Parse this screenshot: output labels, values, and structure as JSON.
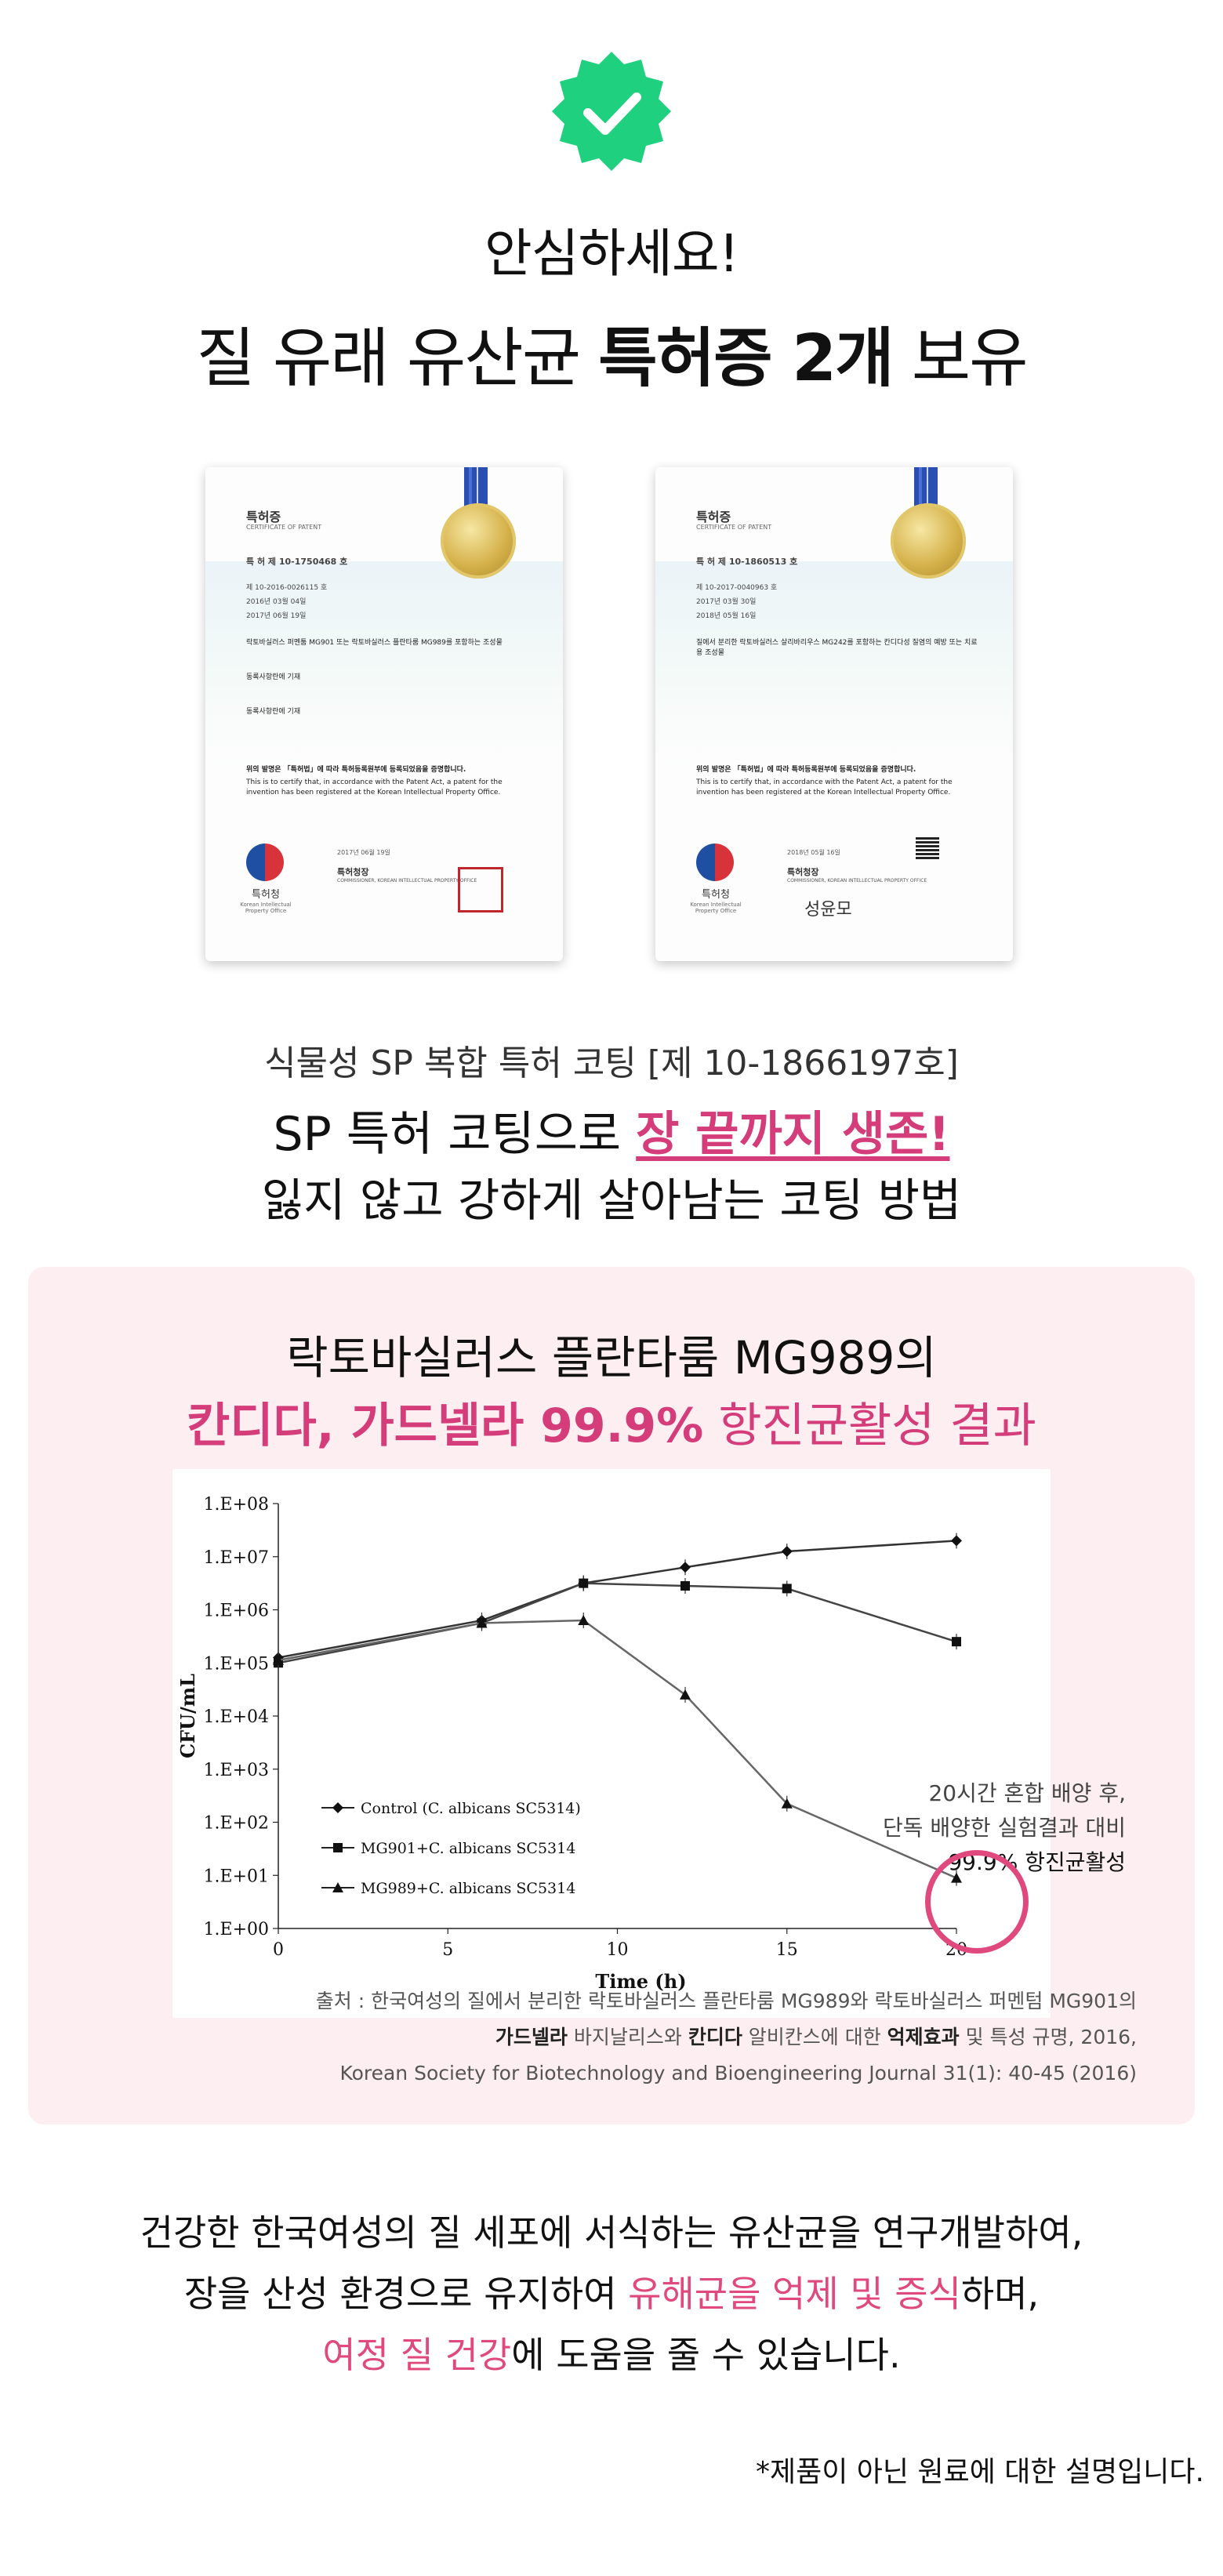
{
  "headline": {
    "line1": "안심하세요!",
    "line2_a": "질 유래 유산균 ",
    "line2_b": "특허증 2개",
    "line2_c": " 보유"
  },
  "icons": {
    "badge": "check-badge-icon",
    "color": "#1fd17f"
  },
  "certificates": [
    {
      "title": "특허증",
      "subtitle": "CERTIFICATE OF PATENT",
      "number": "제 10-1750468 호",
      "rows": [
        "제 10-2016-0026115 호",
        "2016년 03월 04일",
        "2017년 06월 19일"
      ],
      "invention": "락토바실러스 퍼멘툼 MG901 또는 락토바실러스 플란타룸 MG989를 포함하는 조성물",
      "owner": "동록사항란에 기재",
      "inventor": "동록사항란에 기재",
      "cert_kr": "위의 발명은 「특허법」에 따라 특허등록원부에 등록되었음을 증명합니다.",
      "cert_en": "This is to certify that, in accordance with the Patent Act, a patent for the invention has been registered at the Korean Intellectual Property Office.",
      "date": "2017년 06월 19일",
      "commissioner": "특허청장",
      "commissioner_en": "COMMISSIONER, KOREAN INTELLECTUAL PROPERTY OFFICE",
      "office": "특허청",
      "office_en": "Korean Intellectual Property Office"
    },
    {
      "title": "특허증",
      "subtitle": "CERTIFICATE OF PATENT",
      "number": "제 10-1860513 호",
      "rows": [
        "제 10-2017-0040963 호",
        "2017년 03월 30일",
        "2018년 05월 16일"
      ],
      "invention": "질에서 분리한 락토바실러스 살리바리우스 MG242를 포함하는 칸디다성 질염의 예방 또는 치료용 조성물",
      "cert_kr": "위의 발명은 「특허법」에 따라 특허등록원부에 등록되었음을 증명합니다.",
      "cert_en": "This is to certify that, in accordance with the Patent Act, a patent for the invention has been registered at the Korean Intellectual Property Office.",
      "date": "2018년 05월 16일",
      "commissioner": "특허청장",
      "commissioner_en": "COMMISSIONER, KOREAN INTELLECTUAL PROPERTY OFFICE",
      "office": "특허청",
      "office_en": "Korean Intellectual Property Office",
      "signature": "성윤모"
    }
  ],
  "coating": {
    "line1": "식물성 SP 복합 특허 코팅 [제 10-1866197호]",
    "line2_a": "SP 특허 코팅으로 ",
    "line2_b": "장 끝까지 생존!",
    "line3": "잃지 않고 강하게 살아남는 코팅 방법"
  },
  "panel": {
    "title1": "락토바실러스 플란타룸 MG989의",
    "title2_a": "칸디다, 가드넬라 99.9%",
    "title2_b": " 항진균활성 결과",
    "note1": "20시간 혼합 배양 후,",
    "note2": "단독 배양한 실험결과 대비",
    "note3": "99.9% 항진균활성",
    "src1": "출처 : 한국여성의 질에서 분리한 락토바실러스 플란타룸 MG989와 락토바실러스 퍼멘텀 MG901의",
    "src2_a": "가드넬라",
    "src2_b": " 바지날리스와 ",
    "src2_c": "칸디다",
    "src2_d": " 알비칸스에 대한 ",
    "src2_e": "억제효과",
    "src2_f": " 및 특성 규명, 2016,",
    "src3": "Korean Society for Biotechnology and Bioengineering Journal 31(1): 40-45 (2016)"
  },
  "chart_data": {
    "type": "line",
    "xlabel": "Time (h)",
    "ylabel": "CFU/mL",
    "x_ticks": [
      0,
      5,
      10,
      15,
      20
    ],
    "y_ticks": [
      "1.E+00",
      "1.E+01",
      "1.E+02",
      "1.E+03",
      "1.E+04",
      "1.E+05",
      "1.E+06",
      "1.E+07",
      "1.E+08"
    ],
    "xlim": [
      0,
      20
    ],
    "ylim_log10": [
      0,
      8
    ],
    "series": [
      {
        "name": "Control (C. albicans SC5314)",
        "marker": "diamond",
        "x": [
          0,
          6,
          9,
          12,
          15,
          20
        ],
        "log10_y": [
          5.1,
          5.8,
          6.5,
          6.8,
          7.1,
          7.3
        ]
      },
      {
        "name": "MG901+C. albicans SC5314",
        "marker": "square",
        "x": [
          0,
          6,
          9,
          12,
          15,
          20
        ],
        "log10_y": [
          5.0,
          5.75,
          6.5,
          6.45,
          6.4,
          5.4
        ]
      },
      {
        "name": "MG989+C. albicans SC5314",
        "marker": "triangle",
        "x": [
          0,
          6,
          9,
          12,
          15,
          20
        ],
        "log10_y": [
          5.05,
          5.75,
          5.8,
          4.4,
          2.35,
          0.95
        ]
      }
    ]
  },
  "body": {
    "l1": "건강한 한국여성의 질 세포에 서식하는 유산균을 연구개발하여,",
    "l2_a": "장을 산성 환경으로 유지하여 ",
    "l2_b": "유해균을 억제 및 증식",
    "l2_c": "하며,",
    "l3_a": "여정 질 건강",
    "l3_b": "에 도움을 줄 수 있습니다."
  },
  "footnote": "*제품이 아닌 원료에 대한 설명입니다."
}
